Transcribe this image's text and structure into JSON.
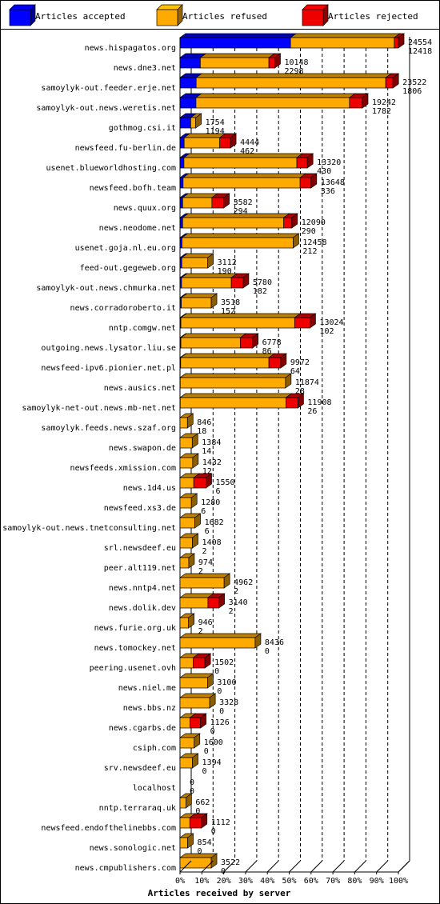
{
  "chart_data": {
    "type": "bar",
    "orientation": "horizontal",
    "stacked": true,
    "title": "",
    "xlabel": "Articles received by server",
    "ylabel": "",
    "xlim": [
      0,
      100
    ],
    "xunit": "%",
    "xticks": [
      "0%",
      "10%",
      "20%",
      "30%",
      "40%",
      "50%",
      "60%",
      "70%",
      "80%",
      "90%",
      "100%"
    ],
    "grid": true,
    "legend_position": "top",
    "colors": {
      "accepted": "#0000ff",
      "refused": "#ffaa00",
      "rejected": "#ee0000"
    },
    "series": [
      {
        "name": "Articles accepted",
        "key": "accepted"
      },
      {
        "name": "Articles refused",
        "key": "refused"
      },
      {
        "name": "Articles rejected",
        "key": "rejected"
      }
    ],
    "categories": [
      "news.hispagatos.org",
      "news.dne3.net",
      "samoylyk-out.feeder.erje.net",
      "samoylyk-out.news.weretis.net",
      "gothmog.csi.it",
      "newsfeed.fu-berlin.de",
      "usenet.blueworldhosting.com",
      "newsfeed.bofh.team",
      "news.quux.org",
      "news.neodome.net",
      "usenet.goja.nl.eu.org",
      "feed-out.gegeweb.org",
      "samoylyk-out.news.chmurka.net",
      "news.corradoroberto.it",
      "nntp.comgw.net",
      "outgoing.news.lysator.liu.se",
      "newsfeed-ipv6.pionier.net.pl",
      "news.ausics.net",
      "samoylyk-net-out.news.mb-net.net",
      "samoylyk.feeds.news.szaf.org",
      "news.swapon.de",
      "newsfeeds.xmission.com",
      "news.1d4.us",
      "newsfeed.xs3.de",
      "samoylyk-out.news.tnetconsulting.net",
      "srl.newsdeef.eu",
      "peer.alt119.net",
      "news.nntp4.net",
      "news.dolik.dev",
      "news.furie.org.uk",
      "news.tomockey.net",
      "peering.usenet.ovh",
      "news.niel.me",
      "news.bbs.nz",
      "news.cgarbs.de",
      "csiph.com",
      "srv.newsdeef.eu",
      "localhost",
      "nntp.terraraq.uk",
      "newsfeed.endofthelinebbs.com",
      "news.sonologic.net",
      "news.cmpublishers.com"
    ],
    "received_labels": [
      24554,
      10148,
      23522,
      19242,
      1754,
      4444,
      13320,
      13648,
      3582,
      12090,
      12458,
      3112,
      5780,
      3518,
      13024,
      6778,
      9972,
      11874,
      11908,
      846,
      1384,
      1432,
      1550,
      1280,
      1682,
      1408,
      974,
      4962,
      3140,
      946,
      8436,
      1502,
      3100,
      3328,
      1126,
      1600,
      1394,
      0,
      662,
      1112,
      854,
      3522
    ],
    "accepted_labels": [
      12418,
      2298,
      1806,
      1782,
      1194,
      462,
      430,
      336,
      294,
      290,
      212,
      190,
      182,
      152,
      102,
      86,
      64,
      28,
      26,
      18,
      14,
      12,
      6,
      6,
      6,
      2,
      2,
      2,
      2,
      2,
      0,
      0,
      0,
      0,
      0,
      0,
      0,
      0,
      0,
      0,
      0,
      0
    ],
    "bars": [
      {
        "accepted": 50.6,
        "refused": 47.5,
        "rejected": 1.9
      },
      {
        "accepted": 9.3,
        "refused": 31.4,
        "rejected": 2.7
      },
      {
        "accepted": 7.4,
        "refused": 86.8,
        "rejected": 3.3
      },
      {
        "accepted": 7.3,
        "refused": 70.3,
        "rejected": 5.9
      },
      {
        "accepted": 4.9,
        "refused": 2.3,
        "rejected": 0
      },
      {
        "accepted": 1.9,
        "refused": 16.3,
        "rejected": 4.9
      },
      {
        "accepted": 1.8,
        "refused": 51.7,
        "rejected": 4.8
      },
      {
        "accepted": 1.4,
        "refused": 53.6,
        "rejected": 5.0
      },
      {
        "accepted": 1.2,
        "refused": 13.4,
        "rejected": 5.4
      },
      {
        "accepted": 1.2,
        "refused": 46.3,
        "rejected": 3.7
      },
      {
        "accepted": 0.9,
        "refused": 50.9,
        "rejected": 0
      },
      {
        "accepted": 0.8,
        "refused": 11.9,
        "rejected": 0
      },
      {
        "accepted": 0.7,
        "refused": 22.8,
        "rejected": 5.4
      },
      {
        "accepted": 0.6,
        "refused": 13.7,
        "rejected": 0
      },
      {
        "accepted": 0.4,
        "refused": 52.1,
        "rejected": 7.0
      },
      {
        "accepted": 0.4,
        "refused": 27.2,
        "rejected": 5.6
      },
      {
        "accepted": 0.3,
        "refused": 40.4,
        "rejected": 5.4
      },
      {
        "accepted": 0.1,
        "refused": 48.2,
        "rejected": 0
      },
      {
        "accepted": 0.1,
        "refused": 48.4,
        "rejected": 5.5
      },
      {
        "accepted": 0,
        "refused": 3.4,
        "rejected": 0
      },
      {
        "accepted": 0,
        "refused": 5.6,
        "rejected": 0
      },
      {
        "accepted": 0,
        "refused": 5.8,
        "rejected": 0
      },
      {
        "accepted": 0,
        "refused": 6.3,
        "rejected": 5.6
      },
      {
        "accepted": 0,
        "refused": 5.2,
        "rejected": 0
      },
      {
        "accepted": 0,
        "refused": 6.8,
        "rejected": 0
      },
      {
        "accepted": 0,
        "refused": 5.7,
        "rejected": 0
      },
      {
        "accepted": 0,
        "refused": 4.0,
        "rejected": 0
      },
      {
        "accepted": 0,
        "refused": 20.2,
        "rejected": 0
      },
      {
        "accepted": 0,
        "refused": 12.8,
        "rejected": 5.0
      },
      {
        "accepted": 0,
        "refused": 3.9,
        "rejected": 0
      },
      {
        "accepted": 0,
        "refused": 34.4,
        "rejected": 0
      },
      {
        "accepted": 0,
        "refused": 6.1,
        "rejected": 5.3
      },
      {
        "accepted": 0,
        "refused": 12.6,
        "rejected": 0
      },
      {
        "accepted": 0,
        "refused": 13.6,
        "rejected": 0
      },
      {
        "accepted": 0,
        "refused": 4.6,
        "rejected": 4.8
      },
      {
        "accepted": 0,
        "refused": 6.5,
        "rejected": 0
      },
      {
        "accepted": 0,
        "refused": 5.7,
        "rejected": 0
      },
      {
        "accepted": 0,
        "refused": 0,
        "rejected": 0
      },
      {
        "accepted": 0,
        "refused": 2.7,
        "rejected": 0
      },
      {
        "accepted": 0,
        "refused": 4.5,
        "rejected": 5.3
      },
      {
        "accepted": 0,
        "refused": 3.5,
        "rejected": 0
      },
      {
        "accepted": 0,
        "refused": 14.3,
        "rejected": 0
      }
    ]
  }
}
